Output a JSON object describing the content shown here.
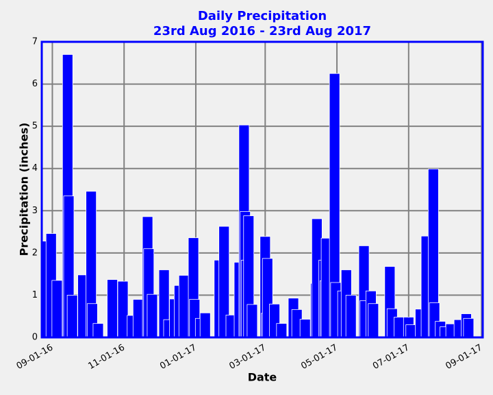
{
  "chart_data": {
    "type": "bar",
    "title": "Daily Precipitation",
    "subtitle": "23rd Aug 2016 - 23rd Aug 2017",
    "x_label": "Date",
    "y_label": "Precipitation (inches)",
    "color": "#0000ff",
    "edge_color": "#ffffff",
    "grid": true,
    "xlim": [
      "2016-08-23",
      "2017-09-02"
    ],
    "xticks": [
      {
        "value": "2016-09-01",
        "label": "09-01-16"
      },
      {
        "value": "2016-11-01",
        "label": "11-01-16"
      },
      {
        "value": "2017-01-01",
        "label": "01-01-17"
      },
      {
        "value": "2017-03-01",
        "label": "03-01-17"
      },
      {
        "value": "2017-05-01",
        "label": "05-01-17"
      },
      {
        "value": "2017-07-01",
        "label": "07-01-17"
      },
      {
        "value": "2017-09-01",
        "label": "09-01-17"
      }
    ],
    "ylim": [
      0,
      7
    ],
    "yticks": [
      0,
      1,
      2,
      3,
      4,
      5,
      6,
      7
    ],
    "x": [
      "2016-08-24",
      "2016-08-31",
      "2016-09-05",
      "2016-09-14",
      "2016-09-15",
      "2016-09-18",
      "2016-09-27",
      "2016-10-04",
      "2016-10-05",
      "2016-10-10",
      "2016-10-22",
      "2016-10-31",
      "2016-11-08",
      "2016-11-13",
      "2016-11-21",
      "2016-11-22",
      "2016-11-25",
      "2016-12-05",
      "2016-12-09",
      "2016-12-14",
      "2016-12-18",
      "2016-12-22",
      "2016-12-30",
      "2016-12-31",
      "2017-01-05",
      "2017-01-09",
      "2017-01-21",
      "2017-01-25",
      "2017-01-31",
      "2017-02-07",
      "2017-02-11",
      "2017-02-12",
      "2017-02-13",
      "2017-02-15",
      "2017-02-18",
      "2017-03-01",
      "2017-03-02",
      "2017-03-03",
      "2017-03-09",
      "2017-03-15",
      "2017-03-25",
      "2017-03-28",
      "2017-04-04",
      "2017-04-13",
      "2017-04-14",
      "2017-04-20",
      "2017-04-21",
      "2017-04-22",
      "2017-04-29",
      "2017-04-30",
      "2017-05-06",
      "2017-05-09",
      "2017-05-13",
      "2017-05-24",
      "2017-05-25",
      "2017-05-30",
      "2017-06-01",
      "2017-06-15",
      "2017-06-17",
      "2017-06-23",
      "2017-07-01",
      "2017-07-03",
      "2017-07-11",
      "2017-07-16",
      "2017-07-22",
      "2017-07-23",
      "2017-07-28",
      "2017-08-01",
      "2017-08-06",
      "2017-08-13",
      "2017-08-19",
      "2017-08-21"
    ],
    "values": [
      2.28,
      2.46,
      1.35,
      6.7,
      3.35,
      1.0,
      1.48,
      3.46,
      0.8,
      0.33,
      1.37,
      1.33,
      0.52,
      0.9,
      2.86,
      2.1,
      1.02,
      1.6,
      0.42,
      0.91,
      1.23,
      1.47,
      2.36,
      0.9,
      0.45,
      0.58,
      1.83,
      2.63,
      0.53,
      1.78,
      5.03,
      2.98,
      1.83,
      2.88,
      0.78,
      2.39,
      0.57,
      1.87,
      0.79,
      0.33,
      0.93,
      0.66,
      0.43,
      1.28,
      2.81,
      1.83,
      1.34,
      2.35,
      6.25,
      1.3,
      1.1,
      1.6,
      1.0,
      2.17,
      0.87,
      1.1,
      0.8,
      1.68,
      0.68,
      0.48,
      0.48,
      0.3,
      0.67,
      2.4,
      3.99,
      0.82,
      0.38,
      0.25,
      0.32,
      0.42,
      0.56,
      0.45
    ]
  }
}
